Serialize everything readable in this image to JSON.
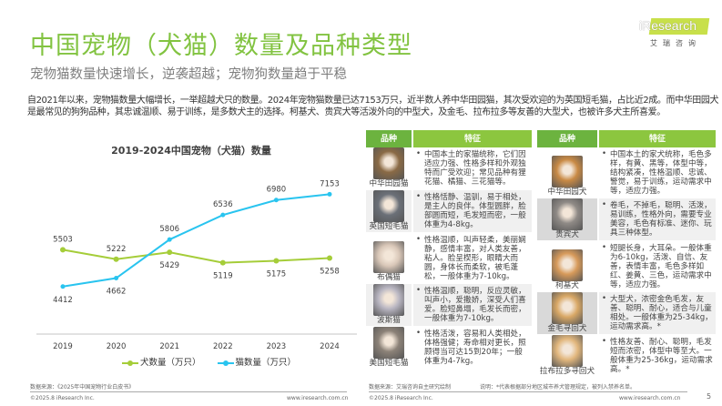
{
  "header": {
    "title": "中国宠物（犬猫）数量及品种类型",
    "subtitle": "宠物猫数量快速增长，逆袭超越；宠物狗数量趋于平稳",
    "logo_text": "iResearch",
    "logo_sub": "艾瑞咨询",
    "brand_color": "#82c341"
  },
  "intro": "自2021年以来，宠物猫数量大幅增长，一举超越犬只的数量。2024年宠物猫数量已达7153万只，近半数人养中华田园猫，其次受欢迎的为英国短毛猫，占比近2成。而中华田园犬是最常见的狗狗品种，其忠诚温顺、易于训练，是多数犬主的选择。柯基犬、贵宾犬等活泼外向的中型犬，及金毛、拉布拉多等友善的大型犬，也被许多犬主所喜爱。",
  "chart_data": {
    "type": "line",
    "title": "2019-2024中国宠物（犬猫）数量",
    "categories": [
      "2019",
      "2020",
      "2021",
      "2022",
      "2023",
      "2024"
    ],
    "series": [
      {
        "name": "犬数量（万只）",
        "color": "#a5cd39",
        "values": [
          5503,
          5222,
          5429,
          5119,
          5175,
          5258
        ]
      },
      {
        "name": "猫数量（万只）",
        "color": "#29c4ef",
        "values": [
          4412,
          4662,
          5806,
          6536,
          6980,
          7153
        ]
      }
    ],
    "ylim": [
      3000,
      8000
    ],
    "grid": false,
    "legend": "bottom"
  },
  "cat_table": {
    "headers": [
      "品种",
      "特征"
    ],
    "rows": [
      {
        "breed": "中华田园猫",
        "desc": "中国本土的家猫统称，它们因适应力强、性格多样和外观独特而广受欢迎；常见品种有狸花猫、橘猫、三花猫等。",
        "photo_color": "#8a6a45"
      },
      {
        "breed": "英国短毛猫",
        "desc": "性格恬静、温驯，易于相处，是主人的良伴。体型圆胖，脸部圆而短，毛发短而密，一般体重为4-8kg。",
        "photo_color": "#6b7078"
      },
      {
        "breed": "布偶猫",
        "desc": "性格温顺，叫声轻柔，美丽娴静，感情丰富，对人类友善，粘人。脸呈楔形，眼睛大而圆，身体长而柔软，被毛蓬松，一般体重为7-10kg。",
        "photo_color": "#d9c7b8"
      },
      {
        "breed": "波斯猫",
        "desc": "性格温顺，聪明，反应灵敏，叫声小，爱撒娇，深受人们喜爱。脸短鼻塌，毛发长而密，一般体重为7-10kg。",
        "photo_color": "#b9b6c2"
      },
      {
        "breed": "美国短毛猫",
        "desc": "性格活泼，容易和人类相处，体格强健；寿命相对更长，照顾得当可达15到20年；一般体重为4-7kg。",
        "photo_color": "#8c8278"
      }
    ]
  },
  "dog_table": {
    "headers": [
      "品种",
      "特征"
    ],
    "rows": [
      {
        "breed": "中华田园犬",
        "desc": "中国本土的家犬统称，毛色多样，有黄、黑等，体型中等，结构紧凑，性格温顺、忠诚、警觉，易于训练，运动需求中等，适应力强。",
        "photo_color": "#c98a45"
      },
      {
        "breed": "贵宾犬",
        "desc": "卷毛，不掉毛，聪明、活泼，易训练，性格外向，需要专业美容，毛色有标准、迷你、玩具三种体型。",
        "photo_color": "#8f8a86"
      },
      {
        "breed": "柯基犬",
        "desc": "短腿长身，大耳朵。一般体重为6-10kg，活泼、自信、友善，表情丰富，毛色多样如红、姜黄、三色，运动需求中等，适应力强。",
        "photo_color": "#d79a5a"
      },
      {
        "breed": "金毛寻回犬",
        "desc": "大型犬，浓密金色毛发，友善、聪明、耐心，适合与儿童相处。一般体重为25-34kg，运动需求高。*",
        "photo_color": "#d9a866"
      },
      {
        "breed": "拉布拉多寻回犬",
        "desc": "性格友善、耐心、聪明，毛发短而浓密，体型中等至大。一般体重为25-36kg，运动需求高。*",
        "photo_color": "#e2b77d"
      }
    ]
  },
  "footer": {
    "source_left": "数据来源：《2025年中国宠物行业白皮书》",
    "copyright": "©2025.8 iResearch Inc.",
    "website": "www.iresearch.com.cn",
    "source_right": "数据来源：艾瑞咨询自主研究绘制",
    "note": "说明：*代表根据部分地区城市养犬管理规定，被列入禁养名单。",
    "page": "5"
  }
}
